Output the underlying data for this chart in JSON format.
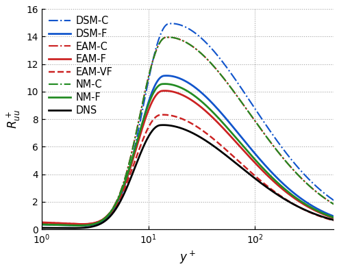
{
  "xlabel": "y^+",
  "ylabel": "R^+_{uu}",
  "xlim": [
    1.0,
    550
  ],
  "ylim": [
    0,
    16
  ],
  "yticks": [
    0,
    2,
    4,
    6,
    8,
    10,
    12,
    14,
    16
  ],
  "curves": [
    {
      "name": "DSM-C",
      "color": "#1155cc",
      "linestyle": "-.",
      "linewidth": 1.4,
      "peak_x": 15.5,
      "peak_y": 15.0,
      "sigma_l": 0.58,
      "sigma_r": 1.8,
      "nw": 0.35
    },
    {
      "name": "DSM-F",
      "color": "#1155cc",
      "linestyle": "-",
      "linewidth": 1.8,
      "peak_x": 14.0,
      "peak_y": 11.2,
      "sigma_l": 0.58,
      "sigma_r": 1.65,
      "nw": 0.35
    },
    {
      "name": "EAM-C",
      "color": "#cc2222",
      "linestyle": "-.",
      "linewidth": 1.4,
      "peak_x": 14.5,
      "peak_y": 14.0,
      "sigma_l": 0.58,
      "sigma_r": 1.8,
      "nw": 0.5
    },
    {
      "name": "EAM-F",
      "color": "#cc2222",
      "linestyle": "-",
      "linewidth": 1.8,
      "peak_x": 13.5,
      "peak_y": 10.1,
      "sigma_l": 0.58,
      "sigma_r": 1.65,
      "nw": 0.5
    },
    {
      "name": "EAM-VF",
      "color": "#cc2222",
      "linestyle": "--",
      "linewidth": 1.6,
      "peak_x": 13.0,
      "peak_y": 8.35,
      "sigma_l": 0.58,
      "sigma_r": 1.65,
      "nw": 0.45
    },
    {
      "name": "NM-C",
      "color": "#228B22",
      "linestyle": "-.",
      "linewidth": 1.4,
      "peak_x": 14.5,
      "peak_y": 14.0,
      "sigma_l": 0.58,
      "sigma_r": 1.8,
      "nw": 0.35
    },
    {
      "name": "NM-F",
      "color": "#228B22",
      "linestyle": "-",
      "linewidth": 1.8,
      "peak_x": 13.5,
      "peak_y": 10.6,
      "sigma_l": 0.58,
      "sigma_r": 1.65,
      "nw": 0.35
    },
    {
      "name": "DNS",
      "color": "#000000",
      "linestyle": "-",
      "linewidth": 1.8,
      "peak_x": 13.0,
      "peak_y": 7.6,
      "sigma_l": 0.58,
      "sigma_r": 1.7,
      "nw": 0.1
    }
  ],
  "background_color": "#ffffff",
  "grid_color": "#888888",
  "legend_fontsize": 9.5,
  "figsize": [
    4.5,
    3.6
  ],
  "dpi": 110
}
